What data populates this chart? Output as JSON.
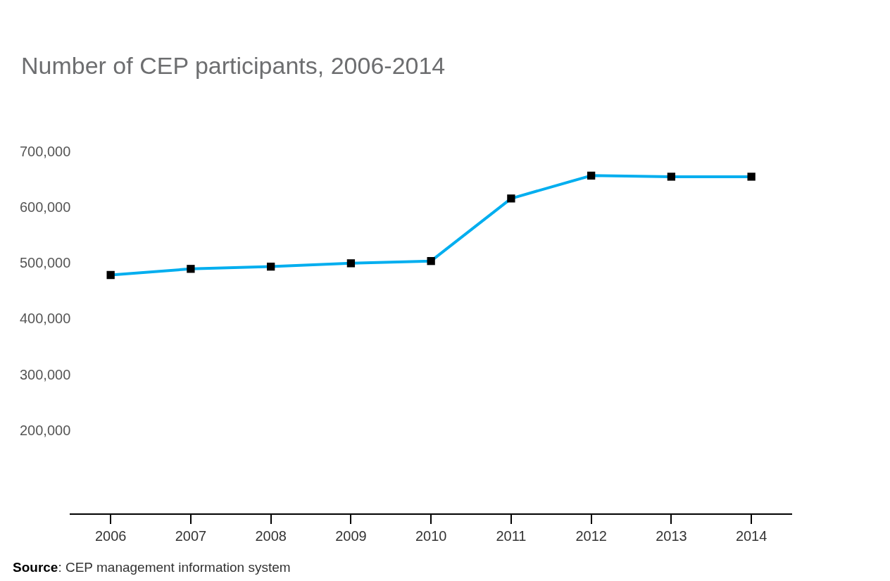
{
  "chart_data": {
    "type": "line",
    "title": "Number of CEP participants, 2006-2014",
    "categories": [
      "2006",
      "2007",
      "2008",
      "2009",
      "2010",
      "2011",
      "2012",
      "2013",
      "2014"
    ],
    "series": [
      {
        "color": "#00aeef",
        "values": [
          480000,
          491000,
          495000,
          501000,
          505000,
          617000,
          658000,
          656000,
          656000
        ]
      }
    ],
    "marker": "square",
    "line_style": "solid",
    "grid": false,
    "legend": false,
    "ylim": [
      52000,
      700000
    ],
    "yticks": [
      {
        "value": 200000,
        "label": "200,000"
      },
      {
        "value": 300000,
        "label": "300,000"
      },
      {
        "value": 400000,
        "label": "400,000"
      },
      {
        "value": 500000,
        "label": "500,000"
      },
      {
        "value": 600000,
        "label": "600,000"
      },
      {
        "value": 700000,
        "label": "700,000"
      }
    ],
    "annotations": [
      "Source: CEP management information system"
    ]
  }
}
